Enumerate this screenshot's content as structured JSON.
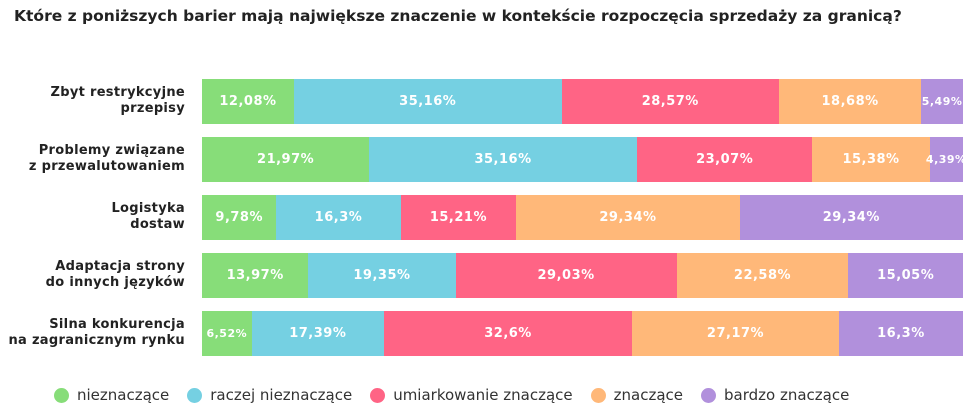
{
  "chart_data": {
    "type": "bar",
    "orientation": "horizontal",
    "stacked": true,
    "title": "Które z poniższych barier mają największe znaczenie w kontekście rozpoczęcia sprzedaży za granicą?",
    "categories": [
      [
        "Zbyt restrykcyjne",
        "przepisy"
      ],
      [
        "Problemy związane",
        "z przewalutowaniem"
      ],
      [
        "Logistyka",
        "dostaw"
      ],
      [
        "Adaptacja strony",
        "do innych języków"
      ],
      [
        "Silna konkurencja",
        "na zagranicznym rynku"
      ]
    ],
    "series": [
      {
        "name": "nieznaczące",
        "color": "#87dd79",
        "values": [
          12.08,
          21.97,
          9.78,
          13.97,
          6.52
        ],
        "labels": [
          "12,08%",
          "21,97%",
          "9,78%",
          "13,97%",
          "6,52%"
        ]
      },
      {
        "name": "raczej nieznaczące",
        "color": "#75d0e2",
        "values": [
          35.16,
          35.16,
          16.3,
          19.35,
          17.39
        ],
        "labels": [
          "35,16%",
          "35,16%",
          "16,3%",
          "19,35%",
          "17,39%"
        ]
      },
      {
        "name": "umiarkowanie znaczące",
        "color": "#ff6485",
        "values": [
          28.57,
          23.07,
          15.21,
          29.03,
          32.6
        ],
        "labels": [
          "28,57%",
          "23,07%",
          "15,21%",
          "29,03%",
          "32,6%"
        ]
      },
      {
        "name": "znaczące",
        "color": "#ffb879",
        "values": [
          18.68,
          15.38,
          29.34,
          22.58,
          27.17
        ],
        "labels": [
          "18,68%",
          "15,38%",
          "29,34%",
          "22,58%",
          "27,17%"
        ]
      },
      {
        "name": "bardzo znaczące",
        "color": "#b190dc",
        "values": [
          5.49,
          4.39,
          29.34,
          15.05,
          16.3
        ],
        "labels": [
          "5,49%",
          "4,39%",
          "29,34%",
          "15,05%",
          "16,3%"
        ]
      }
    ],
    "xlim": [
      0,
      100
    ],
    "grid": false,
    "legend": "bottom"
  }
}
